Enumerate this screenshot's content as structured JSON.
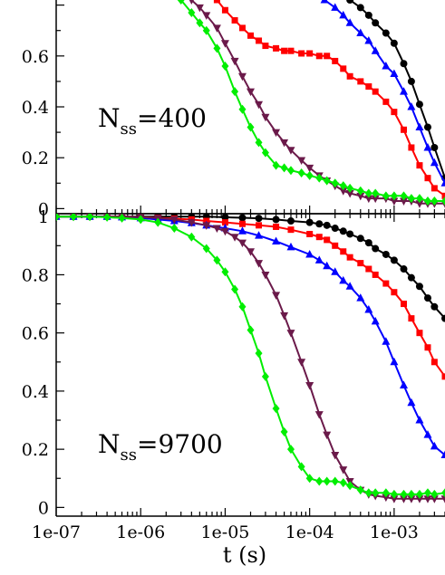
{
  "chart_data": [
    {
      "type": "line",
      "panel": "top",
      "annotation": {
        "main": "N",
        "sub": "ss",
        "value": "=400"
      },
      "xscale": "log",
      "xlim": [
        1e-07,
        0.004
      ],
      "ylim": [
        -0.02,
        0.82
      ],
      "yticks": [
        0,
        0.2,
        0.4,
        0.6
      ],
      "ytick_labels": [
        "0",
        "0.2",
        "0.4",
        "0.6"
      ],
      "grid": false,
      "series": [
        {
          "color": "#000000",
          "marker": "circle",
          "x": [
            0.0003,
            0.0004,
            0.0005,
            0.0006,
            0.0008,
            0.001,
            0.0013,
            0.0016,
            0.002,
            0.0025,
            0.003,
            0.004
          ],
          "y": [
            0.82,
            0.79,
            0.76,
            0.73,
            0.69,
            0.65,
            0.57,
            0.5,
            0.41,
            0.32,
            0.24,
            0.12
          ]
        },
        {
          "color": "#0000ff",
          "marker": "triangle-up",
          "x": [
            0.00015,
            0.0002,
            0.00025,
            0.0003,
            0.0004,
            0.0005,
            0.0006,
            0.0008,
            0.001,
            0.0013,
            0.0016,
            0.002,
            0.0025,
            0.003,
            0.004
          ],
          "y": [
            0.82,
            0.79,
            0.76,
            0.73,
            0.69,
            0.66,
            0.62,
            0.56,
            0.53,
            0.46,
            0.4,
            0.32,
            0.24,
            0.18,
            0.1
          ]
        },
        {
          "color": "#ff0000",
          "marker": "square",
          "x": [
            8e-06,
            1e-05,
            1.3e-05,
            1.6e-05,
            2e-05,
            2.5e-05,
            3e-05,
            4e-05,
            5e-05,
            6e-05,
            8e-05,
            0.0001,
            0.00013,
            0.00016,
            0.0002,
            0.00025,
            0.0003,
            0.0004,
            0.0005,
            0.0006,
            0.0008,
            0.001,
            0.0013,
            0.0016,
            0.002,
            0.0025,
            0.003,
            0.004
          ],
          "y": [
            0.82,
            0.78,
            0.74,
            0.71,
            0.68,
            0.66,
            0.64,
            0.63,
            0.62,
            0.62,
            0.61,
            0.61,
            0.6,
            0.6,
            0.58,
            0.55,
            0.52,
            0.5,
            0.48,
            0.46,
            0.42,
            0.38,
            0.31,
            0.24,
            0.17,
            0.12,
            0.08,
            0.05
          ]
        },
        {
          "color": "#6b1a4a",
          "marker": "triangle-down",
          "x": [
            4e-06,
            5e-06,
            6e-06,
            8e-06,
            1e-05,
            1.3e-05,
            1.6e-05,
            2e-05,
            2.5e-05,
            3e-05,
            4e-05,
            5e-05,
            6e-05,
            8e-05,
            0.0001,
            0.00013,
            0.00016,
            0.0002,
            0.00025,
            0.0003,
            0.0004,
            0.0005,
            0.0006,
            0.0008,
            0.001,
            0.0013,
            0.0016,
            0.002,
            0.0025,
            0.003,
            0.004
          ],
          "y": [
            0.82,
            0.79,
            0.76,
            0.71,
            0.65,
            0.58,
            0.52,
            0.46,
            0.41,
            0.36,
            0.3,
            0.26,
            0.23,
            0.19,
            0.16,
            0.13,
            0.11,
            0.09,
            0.07,
            0.06,
            0.05,
            0.04,
            0.04,
            0.04,
            0.03,
            0.03,
            0.03,
            0.02,
            0.02,
            0.02,
            0.02
          ]
        },
        {
          "color": "#00ee00",
          "marker": "diamond",
          "x": [
            3e-06,
            4e-06,
            5e-06,
            6e-06,
            8e-06,
            1e-05,
            1.3e-05,
            1.6e-05,
            2e-05,
            2.5e-05,
            3e-05,
            4e-05,
            5e-05,
            6e-05,
            8e-05,
            0.0001,
            0.00013,
            0.00016,
            0.0002,
            0.00025,
            0.0003,
            0.0004,
            0.0005,
            0.0006,
            0.0008,
            0.001,
            0.0013,
            0.0016,
            0.002,
            0.0025,
            0.003,
            0.004
          ],
          "y": [
            0.82,
            0.77,
            0.73,
            0.7,
            0.63,
            0.56,
            0.46,
            0.39,
            0.32,
            0.26,
            0.22,
            0.17,
            0.16,
            0.15,
            0.14,
            0.13,
            0.12,
            0.11,
            0.1,
            0.09,
            0.08,
            0.07,
            0.06,
            0.06,
            0.05,
            0.05,
            0.05,
            0.04,
            0.04,
            0.03,
            0.03,
            0.03
          ]
        }
      ]
    },
    {
      "type": "line",
      "panel": "bottom",
      "annotation": {
        "main": "N",
        "sub": "ss",
        "value": "=9700"
      },
      "xscale": "log",
      "xlim": [
        1e-07,
        0.004
      ],
      "xticks": [
        1e-07,
        1e-06,
        1e-05,
        0.0001,
        0.001
      ],
      "xtick_labels": [
        "1e-07",
        "1e-06",
        "1e-05",
        "1e-04",
        "1e-03"
      ],
      "xlabel": "t (s)",
      "ylim": [
        -0.03,
        1.01
      ],
      "yticks": [
        0,
        0.2,
        0.4,
        0.6,
        0.8,
        1
      ],
      "ytick_labels": [
        "0",
        "0.2",
        "0.4",
        "0.6",
        "0.8",
        "1"
      ],
      "grid": false,
      "series": [
        {
          "color": "#000000",
          "marker": "circle",
          "x": [
            1e-07,
            1.6e-07,
            2.5e-07,
            4e-07,
            6e-07,
            1e-06,
            1.6e-06,
            2.5e-06,
            4e-06,
            6e-06,
            1e-05,
            1.6e-05,
            2.5e-05,
            4e-05,
            6e-05,
            0.0001,
            0.00013,
            0.00016,
            0.0002,
            0.00025,
            0.0003,
            0.0004,
            0.0005,
            0.0006,
            0.0008,
            0.001,
            0.0013,
            0.0016,
            0.002,
            0.0025,
            0.003,
            0.004
          ],
          "y": [
            1,
            1,
            1,
            1,
            1,
            1,
            1,
            1,
            1,
            1,
            0.998,
            0.996,
            0.994,
            0.99,
            0.985,
            0.98,
            0.975,
            0.97,
            0.96,
            0.95,
            0.94,
            0.925,
            0.91,
            0.89,
            0.87,
            0.85,
            0.82,
            0.79,
            0.76,
            0.72,
            0.69,
            0.65
          ]
        },
        {
          "color": "#ff0000",
          "marker": "square",
          "x": [
            1e-07,
            1.6e-07,
            2.5e-07,
            4e-07,
            6e-07,
            1e-06,
            1.6e-06,
            2.5e-06,
            4e-06,
            6e-06,
            1e-05,
            1.6e-05,
            2.5e-05,
            4e-05,
            6e-05,
            0.0001,
            0.00013,
            0.00016,
            0.0002,
            0.00025,
            0.0003,
            0.0004,
            0.0005,
            0.0006,
            0.0008,
            0.001,
            0.0013,
            0.0016,
            0.002,
            0.0025,
            0.003,
            0.004
          ],
          "y": [
            1,
            1,
            1,
            1,
            1,
            0.998,
            0.996,
            0.993,
            0.99,
            0.985,
            0.98,
            0.975,
            0.97,
            0.965,
            0.955,
            0.94,
            0.93,
            0.92,
            0.9,
            0.88,
            0.86,
            0.84,
            0.82,
            0.8,
            0.77,
            0.74,
            0.7,
            0.65,
            0.6,
            0.55,
            0.5,
            0.45
          ]
        },
        {
          "color": "#0000ff",
          "marker": "triangle-up",
          "x": [
            1e-07,
            1.6e-07,
            2.5e-07,
            4e-07,
            6e-07,
            1e-06,
            1.6e-06,
            2.5e-06,
            4e-06,
            6e-06,
            1e-05,
            1.6e-05,
            2.5e-05,
            4e-05,
            6e-05,
            0.0001,
            0.00013,
            0.00016,
            0.0002,
            0.00025,
            0.0003,
            0.0004,
            0.0005,
            0.0006,
            0.0008,
            0.001,
            0.0013,
            0.0016,
            0.002,
            0.0025,
            0.003,
            0.004
          ],
          "y": [
            1,
            1,
            1,
            1,
            0.998,
            0.995,
            0.99,
            0.985,
            0.978,
            0.97,
            0.96,
            0.95,
            0.935,
            0.915,
            0.895,
            0.87,
            0.85,
            0.83,
            0.81,
            0.78,
            0.76,
            0.72,
            0.68,
            0.64,
            0.57,
            0.5,
            0.42,
            0.36,
            0.3,
            0.25,
            0.21,
            0.18
          ]
        },
        {
          "color": "#6b1a4a",
          "marker": "triangle-down",
          "x": [
            1e-07,
            1.6e-07,
            2.5e-07,
            4e-07,
            6e-07,
            1e-06,
            1.6e-06,
            2.5e-06,
            4e-06,
            6e-06,
            8e-06,
            1e-05,
            1.3e-05,
            1.6e-05,
            2e-05,
            2.5e-05,
            3e-05,
            4e-05,
            5e-05,
            6e-05,
            8e-05,
            0.0001,
            0.00013,
            0.00016,
            0.0002,
            0.00025,
            0.0003,
            0.0004,
            0.0005,
            0.0006,
            0.0008,
            0.001,
            0.0013,
            0.0016,
            0.002,
            0.0025,
            0.003,
            0.004
          ],
          "y": [
            1,
            1,
            1,
            1,
            1,
            0.998,
            0.995,
            0.99,
            0.98,
            0.97,
            0.96,
            0.95,
            0.93,
            0.91,
            0.88,
            0.84,
            0.8,
            0.73,
            0.66,
            0.6,
            0.5,
            0.42,
            0.32,
            0.25,
            0.18,
            0.13,
            0.09,
            0.06,
            0.045,
            0.04,
            0.035,
            0.03,
            0.03,
            0.03,
            0.03,
            0.03,
            0.03,
            0.03
          ]
        },
        {
          "color": "#00ee00",
          "marker": "diamond",
          "x": [
            1e-07,
            1.6e-07,
            2.5e-07,
            4e-07,
            6e-07,
            1e-06,
            1.6e-06,
            2.5e-06,
            4e-06,
            6e-06,
            8e-06,
            1e-05,
            1.3e-05,
            1.6e-05,
            2e-05,
            2.5e-05,
            3e-05,
            4e-05,
            5e-05,
            6e-05,
            8e-05,
            0.0001,
            0.00013,
            0.00016,
            0.0002,
            0.00025,
            0.0003,
            0.0004,
            0.0005,
            0.0006,
            0.0008,
            0.001,
            0.0013,
            0.0016,
            0.002,
            0.0025,
            0.003,
            0.004
          ],
          "y": [
            1,
            1,
            1,
            0.998,
            0.995,
            0.99,
            0.98,
            0.96,
            0.93,
            0.89,
            0.85,
            0.81,
            0.75,
            0.69,
            0.61,
            0.53,
            0.45,
            0.34,
            0.26,
            0.2,
            0.14,
            0.1,
            0.09,
            0.09,
            0.09,
            0.085,
            0.075,
            0.06,
            0.05,
            0.05,
            0.05,
            0.045,
            0.045,
            0.045,
            0.045,
            0.05,
            0.045,
            0.05
          ]
        }
      ]
    }
  ]
}
